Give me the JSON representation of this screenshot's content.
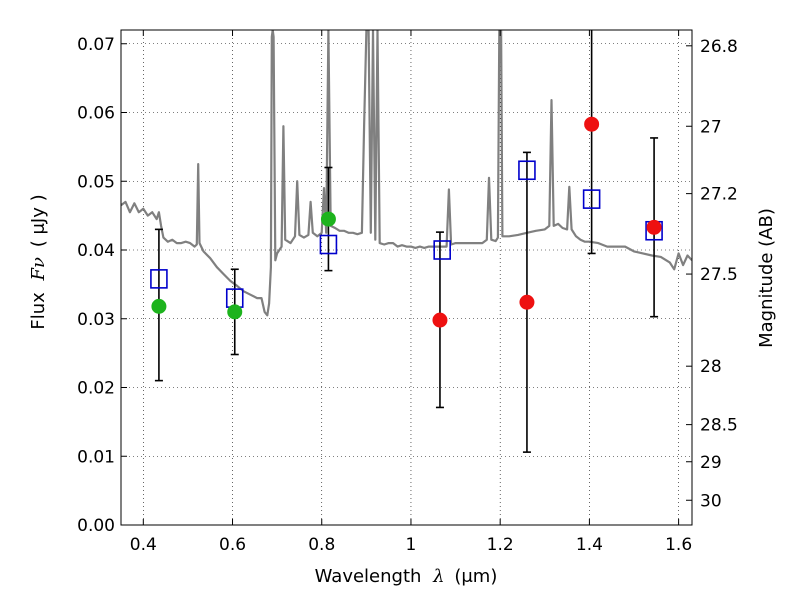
{
  "chart_data": {
    "type": "scatter",
    "xlabel_text": "Wavelength",
    "xlabel_symbol": "λ",
    "xlabel_unit": "(μm)",
    "ylabel_text": "Flux",
    "ylabel_symbol": "Fν",
    "ylabel_unit": "( μJy )",
    "y2label": "Magnitude (AB)",
    "xlim": [
      0.35,
      1.63
    ],
    "ylim": [
      0.0,
      0.072
    ],
    "x_ticks": [
      0.4,
      0.6,
      0.8,
      1.0,
      1.2,
      1.4,
      1.6
    ],
    "x_tick_labels": [
      "0.4",
      "0.6",
      "0.8",
      "1",
      "1.2",
      "1.4",
      "1.6"
    ],
    "y_ticks": [
      0.0,
      0.01,
      0.02,
      0.03,
      0.04,
      0.05,
      0.06,
      0.07
    ],
    "y_tick_labels": [
      "0.00",
      "0.01",
      "0.02",
      "0.03",
      "0.04",
      "0.05",
      "0.06",
      "0.07"
    ],
    "y2_ticks": [
      {
        "label": "26.8",
        "flux": 0.0697
      },
      {
        "label": "27",
        "flux": 0.058
      },
      {
        "label": "27.2",
        "flux": 0.0482
      },
      {
        "label": "27.5",
        "flux": 0.0365
      },
      {
        "label": "28",
        "flux": 0.0231
      },
      {
        "label": "28.5",
        "flux": 0.0146
      },
      {
        "label": "29",
        "flux": 0.0092
      },
      {
        "label": "30",
        "flux": 0.0036
      }
    ],
    "grid": true,
    "colors": {
      "spectrum": "#808080",
      "model_squares": "#0000cc",
      "green_points": "#1db31d",
      "red_points": "#ee1111",
      "errorbars": "#000000"
    },
    "observed_points": [
      {
        "x": 0.435,
        "y": 0.0318,
        "yerr_low": 0.0108,
        "yerr_high": 0.0112,
        "color": "green"
      },
      {
        "x": 0.605,
        "y": 0.031,
        "yerr_low": 0.0062,
        "yerr_high": 0.0062,
        "color": "green"
      },
      {
        "x": 0.815,
        "y": 0.0445,
        "yerr_low": 0.0075,
        "yerr_high": 0.0075,
        "color": "green"
      },
      {
        "x": 1.065,
        "y": 0.0298,
        "yerr_low": 0.0127,
        "yerr_high": 0.0128,
        "color": "red"
      },
      {
        "x": 1.26,
        "y": 0.0324,
        "yerr_low": 0.0218,
        "yerr_high": 0.0218,
        "color": "red"
      },
      {
        "x": 1.405,
        "y": 0.0583,
        "yerr_low": 0.0188,
        "yerr_high": 0.025,
        "color": "red"
      },
      {
        "x": 1.545,
        "y": 0.0433,
        "yerr_low": 0.013,
        "yerr_high": 0.013,
        "color": "red"
      }
    ],
    "model_squares": [
      {
        "x": 0.435,
        "y": 0.0358
      },
      {
        "x": 0.605,
        "y": 0.033
      },
      {
        "x": 0.815,
        "y": 0.0408
      },
      {
        "x": 1.07,
        "y": 0.04
      },
      {
        "x": 1.26,
        "y": 0.0516
      },
      {
        "x": 1.405,
        "y": 0.0474
      },
      {
        "x": 1.545,
        "y": 0.0428
      }
    ],
    "spectrum": [
      [
        0.35,
        0.0465
      ],
      [
        0.36,
        0.047
      ],
      [
        0.37,
        0.0455
      ],
      [
        0.38,
        0.0468
      ],
      [
        0.39,
        0.0455
      ],
      [
        0.4,
        0.046
      ],
      [
        0.41,
        0.045
      ],
      [
        0.42,
        0.0455
      ],
      [
        0.43,
        0.0445
      ],
      [
        0.435,
        0.0455
      ],
      [
        0.44,
        0.0435
      ],
      [
        0.445,
        0.0418
      ],
      [
        0.455,
        0.0412
      ],
      [
        0.465,
        0.0415
      ],
      [
        0.475,
        0.041
      ],
      [
        0.485,
        0.041
      ],
      [
        0.495,
        0.0412
      ],
      [
        0.505,
        0.041
      ],
      [
        0.515,
        0.0405
      ],
      [
        0.52,
        0.0408
      ],
      [
        0.523,
        0.0525
      ],
      [
        0.526,
        0.041
      ],
      [
        0.535,
        0.0398
      ],
      [
        0.55,
        0.0388
      ],
      [
        0.565,
        0.0375
      ],
      [
        0.58,
        0.0365
      ],
      [
        0.595,
        0.0355
      ],
      [
        0.61,
        0.0348
      ],
      [
        0.625,
        0.034
      ],
      [
        0.64,
        0.0335
      ],
      [
        0.655,
        0.033
      ],
      [
        0.665,
        0.033
      ],
      [
        0.672,
        0.031
      ],
      [
        0.678,
        0.0305
      ],
      [
        0.682,
        0.0322
      ],
      [
        0.686,
        0.0375
      ],
      [
        0.688,
        0.071
      ],
      [
        0.69,
        0.072
      ],
      [
        0.692,
        0.071
      ],
      [
        0.696,
        0.0385
      ],
      [
        0.7,
        0.0395
      ],
      [
        0.71,
        0.0405
      ],
      [
        0.714,
        0.058
      ],
      [
        0.718,
        0.0415
      ],
      [
        0.73,
        0.041
      ],
      [
        0.74,
        0.042
      ],
      [
        0.745,
        0.05
      ],
      [
        0.75,
        0.0422
      ],
      [
        0.76,
        0.0418
      ],
      [
        0.77,
        0.0422
      ],
      [
        0.775,
        0.047
      ],
      [
        0.78,
        0.0425
      ],
      [
        0.79,
        0.042
      ],
      [
        0.8,
        0.0425
      ],
      [
        0.805,
        0.049
      ],
      [
        0.81,
        0.0425
      ],
      [
        0.815,
        0.072
      ],
      [
        0.82,
        0.0435
      ],
      [
        0.83,
        0.0432
      ],
      [
        0.84,
        0.0428
      ],
      [
        0.85,
        0.0428
      ],
      [
        0.86,
        0.0425
      ],
      [
        0.87,
        0.0425
      ],
      [
        0.88,
        0.0423
      ],
      [
        0.89,
        0.0425
      ],
      [
        0.895,
        0.058
      ],
      [
        0.9,
        0.072
      ],
      [
        0.905,
        0.072
      ],
      [
        0.91,
        0.0425
      ],
      [
        0.915,
        0.072
      ],
      [
        0.92,
        0.0415
      ],
      [
        0.925,
        0.072
      ],
      [
        0.93,
        0.041
      ],
      [
        0.94,
        0.0408
      ],
      [
        0.95,
        0.041
      ],
      [
        0.96,
        0.041
      ],
      [
        0.97,
        0.0405
      ],
      [
        0.98,
        0.0407
      ],
      [
        0.99,
        0.0405
      ],
      [
        1.0,
        0.0405
      ],
      [
        1.01,
        0.0403
      ],
      [
        1.02,
        0.0405
      ],
      [
        1.03,
        0.0403
      ],
      [
        1.04,
        0.0405
      ],
      [
        1.05,
        0.0405
      ],
      [
        1.06,
        0.0405
      ],
      [
        1.08,
        0.0405
      ],
      [
        1.085,
        0.0488
      ],
      [
        1.09,
        0.0408
      ],
      [
        1.1,
        0.041
      ],
      [
        1.12,
        0.041
      ],
      [
        1.14,
        0.041
      ],
      [
        1.16,
        0.041
      ],
      [
        1.17,
        0.0415
      ],
      [
        1.175,
        0.0505
      ],
      [
        1.18,
        0.0415
      ],
      [
        1.19,
        0.0413
      ],
      [
        1.195,
        0.0418
      ],
      [
        1.198,
        0.072
      ],
      [
        1.202,
        0.072
      ],
      [
        1.205,
        0.042
      ],
      [
        1.22,
        0.042
      ],
      [
        1.24,
        0.0422
      ],
      [
        1.26,
        0.0425
      ],
      [
        1.28,
        0.0428
      ],
      [
        1.3,
        0.043
      ],
      [
        1.31,
        0.0435
      ],
      [
        1.315,
        0.0618
      ],
      [
        1.32,
        0.0435
      ],
      [
        1.33,
        0.0438
      ],
      [
        1.34,
        0.0432
      ],
      [
        1.35,
        0.043
      ],
      [
        1.355,
        0.0492
      ],
      [
        1.36,
        0.043
      ],
      [
        1.37,
        0.042
      ],
      [
        1.38,
        0.0415
      ],
      [
        1.39,
        0.0412
      ],
      [
        1.4,
        0.0412
      ],
      [
        1.42,
        0.041
      ],
      [
        1.44,
        0.0405
      ],
      [
        1.46,
        0.0405
      ],
      [
        1.48,
        0.0405
      ],
      [
        1.5,
        0.0398
      ],
      [
        1.52,
        0.0395
      ],
      [
        1.54,
        0.0392
      ],
      [
        1.56,
        0.039
      ],
      [
        1.58,
        0.0382
      ],
      [
        1.59,
        0.0372
      ],
      [
        1.6,
        0.0395
      ],
      [
        1.61,
        0.0378
      ],
      [
        1.62,
        0.0392
      ],
      [
        1.63,
        0.0385
      ]
    ]
  }
}
